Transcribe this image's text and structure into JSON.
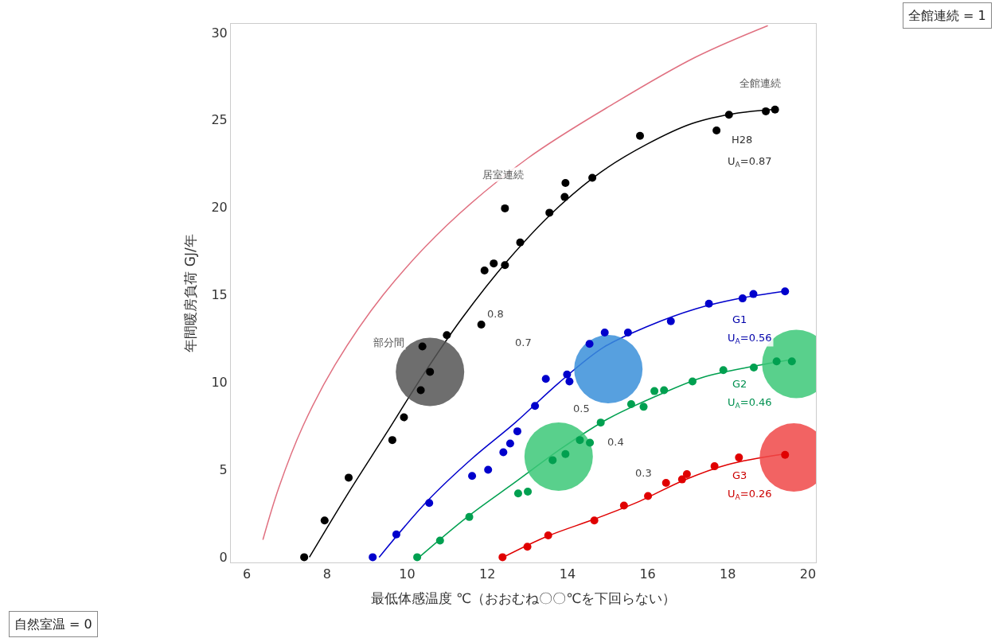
{
  "chart_data": {
    "type": "scatter",
    "xlabel": "最低体感温度 ℃（おおむね〇〇℃を下回らない）",
    "ylabel": "年間暖房負荷 GJ/年",
    "xlim": [
      5.6,
      20.2
    ],
    "ylim": [
      -0.3,
      30.5
    ],
    "xticks": [
      6,
      8,
      10,
      12,
      14,
      16,
      18,
      20
    ],
    "yticks": [
      0,
      5,
      10,
      15,
      20,
      25,
      30
    ],
    "grid": false,
    "marker": "circle",
    "series": [
      {
        "type": "line",
        "marker": "none",
        "color": "#e07080",
        "x": [
          6.4,
          6.8,
          7.4,
          8.2,
          9.4,
          11.0,
          13.0,
          15.2,
          17.2,
          19.0
        ],
        "values": [
          1.0,
          4.0,
          7.5,
          11.0,
          15.0,
          19.0,
          22.8,
          26.0,
          28.6,
          30.4
        ]
      },
      {
        "type": "line",
        "marker": "none",
        "color": "#000000",
        "x": [
          7.56,
          8.51,
          9.47,
          10.42,
          11.38,
          12.52,
          13.67,
          14.82,
          15.97,
          17.11,
          18.26,
          19.12
        ],
        "values": [
          0,
          3.6,
          7.05,
          10.5,
          13.7,
          17.0,
          19.8,
          22.0,
          23.6,
          24.8,
          25.4,
          25.6
        ]
      },
      {
        "type": "line",
        "marker": "none",
        "color": "#0000cc",
        "x": [
          9.3,
          10.5,
          11.6,
          12.7,
          13.8,
          14.9,
          16.0,
          17.2,
          18.3,
          19.4
        ],
        "values": [
          0,
          3.2,
          5.6,
          7.7,
          10.0,
          12.0,
          13.2,
          14.2,
          14.8,
          15.2
        ]
      },
      {
        "type": "line",
        "marker": "none",
        "color": "#00a050",
        "x": [
          10.3,
          11.5,
          12.7,
          13.9,
          15.0,
          16.2,
          17.4,
          18.6,
          19.6
        ],
        "values": [
          0,
          2.3,
          4.3,
          6.3,
          7.9,
          9.2,
          10.3,
          10.9,
          11.3
        ]
      },
      {
        "type": "line",
        "marker": "none",
        "color": "#e00000",
        "x": [
          12.4,
          13.5,
          14.7,
          15.8,
          16.9,
          18.0,
          19.4
        ],
        "values": [
          0,
          1.2,
          2.2,
          3.2,
          4.4,
          5.3,
          5.9
        ]
      },
      {
        "type": "bubble",
        "colors": [
          "#555555",
          "#3a8fd9",
          "#3cc878",
          "#3cc878",
          "#f04848"
        ],
        "x": [
          10.57,
          15.02,
          13.78,
          19.71,
          19.65
        ],
        "values": [
          10.6,
          10.75,
          5.75,
          11.05,
          5.7
        ],
        "sizes": [
          1,
          1,
          1,
          1,
          1
        ]
      },
      {
        "color": "#000000",
        "x": [
          7.43,
          7.94,
          8.54,
          9.63,
          9.92,
          10.34,
          10.57,
          10.38,
          10.99,
          11.85,
          11.93,
          12.16,
          12.44,
          12.82,
          12.44,
          13.55,
          13.93,
          13.95,
          14.62,
          15.81,
          17.72,
          18.03,
          18.95,
          19.18
        ],
        "values": [
          0,
          2.1,
          4.55,
          6.7,
          8.0,
          9.55,
          10.6,
          12.05,
          12.7,
          13.3,
          16.4,
          16.8,
          16.7,
          18.0,
          19.95,
          19.7,
          20.6,
          21.4,
          21.7,
          24.1,
          24.4,
          25.3,
          25.5,
          25.6
        ]
      },
      {
        "color": "#0000cc",
        "x": [
          9.14,
          9.73,
          10.55,
          11.62,
          12.02,
          12.4,
          12.57,
          12.75,
          13.19,
          13.46,
          13.99,
          14.05,
          14.55,
          14.93,
          15.51,
          16.58,
          17.53,
          18.37,
          18.64,
          19.43
        ],
        "values": [
          0,
          1.3,
          3.1,
          4.65,
          5.0,
          6.0,
          6.5,
          7.2,
          8.65,
          10.2,
          10.45,
          10.05,
          12.2,
          12.85,
          12.85,
          13.5,
          14.5,
          14.8,
          15.05,
          15.2
        ]
      },
      {
        "color": "#00a050",
        "x": [
          10.25,
          10.82,
          11.55,
          12.77,
          13.01,
          13.63,
          13.95,
          14.31,
          14.56,
          14.83,
          15.59,
          15.9,
          16.17,
          16.41,
          17.12,
          17.89,
          18.65,
          19.22,
          19.6
        ],
        "values": [
          0,
          0.95,
          2.3,
          3.65,
          3.75,
          5.55,
          5.9,
          6.7,
          6.55,
          7.7,
          8.75,
          8.6,
          9.5,
          9.55,
          10.05,
          10.7,
          10.85,
          11.2,
          11.2
        ]
      },
      {
        "color": "#e00000",
        "x": [
          12.38,
          13.0,
          13.52,
          14.67,
          15.41,
          16.01,
          16.46,
          16.86,
          16.98,
          17.67,
          18.28,
          19.43
        ],
        "values": [
          0,
          0.6,
          1.25,
          2.1,
          2.95,
          3.5,
          4.25,
          4.45,
          4.75,
          5.2,
          5.7,
          5.85
        ]
      }
    ],
    "annotations": [
      "全館連続 = 1",
      "自然室温 = 0",
      "部分間",
      "居室連続",
      "全館連続",
      "H28",
      "U$_{A}$=0.87",
      "G1",
      "U$_{A}$=0.56",
      "G2",
      "U$_{A}$=0.46",
      "G3",
      "U$_{A}$=0.26",
      "0.8",
      "0.7",
      "0.5",
      "0.4",
      "0.3"
    ]
  }
}
